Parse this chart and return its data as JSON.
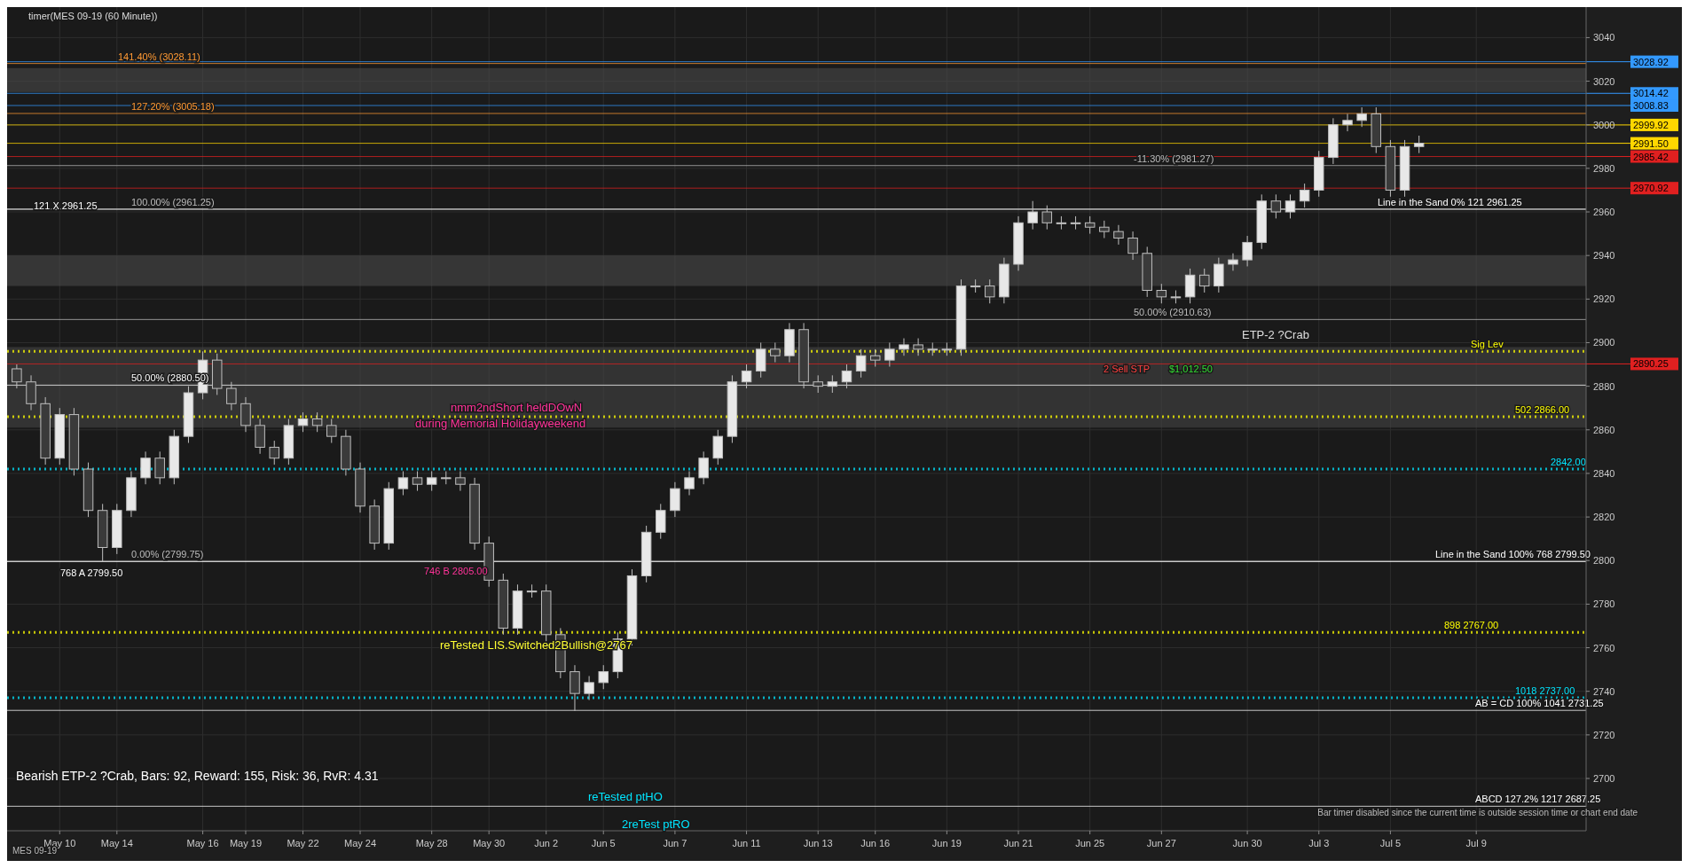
{
  "chart_data": {
    "type": "candlestick",
    "categories": [
      null,
      null,
      null,
      "May 10",
      null,
      null,
      null,
      "May 14",
      null,
      null,
      null,
      null,
      null,
      "May 16",
      null,
      null,
      "May 19",
      null,
      null,
      null,
      "May 22",
      null,
      null,
      null,
      "May 24",
      null,
      null,
      null,
      null,
      "May 28",
      null,
      null,
      null,
      "May 30",
      null,
      null,
      null,
      "Jun 2",
      null,
      null,
      null,
      "Jun 5",
      null,
      null,
      null,
      null,
      "Jun 7",
      null,
      null,
      null,
      null,
      "Jun 11",
      null,
      null,
      null,
      null,
      "Jun 13",
      null,
      null,
      null,
      "Jun 16",
      null,
      null,
      null,
      null,
      "Jun 19",
      null,
      null,
      null,
      null,
      "Jun 21",
      null,
      null,
      null,
      null,
      "Jun 25",
      null,
      null,
      null,
      null,
      "Jun 27",
      null,
      null,
      null,
      null,
      null,
      "Jun 30",
      null,
      null,
      null,
      null,
      "Jul 3",
      null,
      null,
      null,
      null,
      "Jul 5",
      null,
      null,
      null,
      null,
      null,
      "Jul 9",
      null,
      null,
      null,
      null,
      null,
      null,
      null
    ],
    "ohlc": [
      [
        2888,
        2890,
        2879,
        2882
      ],
      [
        2882,
        2885,
        2869,
        2872
      ],
      [
        2872,
        2875,
        2844,
        2847
      ],
      [
        2847,
        2870,
        2844,
        2867
      ],
      [
        2867,
        2870,
        2839,
        2842
      ],
      [
        2842,
        2845,
        2820,
        2823
      ],
      [
        2823,
        2826,
        2799.5,
        2806
      ],
      [
        2806,
        2826,
        2803,
        2823
      ],
      [
        2823,
        2841,
        2820,
        2838
      ],
      [
        2838,
        2850,
        2835,
        2847
      ],
      [
        2847,
        2850,
        2835,
        2838
      ],
      [
        2838,
        2860,
        2835,
        2857
      ],
      [
        2857,
        2880,
        2854,
        2877
      ],
      [
        2877,
        2896,
        2874,
        2892
      ],
      [
        2892,
        2895,
        2876,
        2879
      ],
      [
        2879,
        2882,
        2869,
        2872
      ],
      [
        2872,
        2875,
        2859,
        2862
      ],
      [
        2862,
        2865,
        2849,
        2852
      ],
      [
        2852,
        2855,
        2844,
        2847
      ],
      [
        2847,
        2865,
        2844,
        2862
      ],
      [
        2862,
        2868,
        2859,
        2865
      ],
      [
        2865,
        2868,
        2859,
        2862
      ],
      [
        2862,
        2865,
        2854,
        2857
      ],
      [
        2857,
        2860,
        2839,
        2842
      ],
      [
        2842,
        2845,
        2822,
        2825
      ],
      [
        2825,
        2828,
        2805,
        2808
      ],
      [
        2808,
        2836,
        2805,
        2833
      ],
      [
        2833,
        2841,
        2830,
        2838
      ],
      [
        2838,
        2841,
        2832,
        2835
      ],
      [
        2835,
        2841,
        2832,
        2838
      ],
      [
        2838,
        2841,
        2835,
        2838
      ],
      [
        2838,
        2841,
        2832,
        2835
      ],
      [
        2835,
        2838,
        2805,
        2808
      ],
      [
        2808,
        2811,
        2788,
        2791
      ],
      [
        2791,
        2794,
        2766,
        2769
      ],
      [
        2769,
        2789,
        2766,
        2786
      ],
      [
        2786,
        2789,
        2783,
        2786
      ],
      [
        2786,
        2789,
        2763,
        2766
      ],
      [
        2766,
        2769,
        2746,
        2749
      ],
      [
        2749,
        2752,
        2731,
        2739
      ],
      [
        2739,
        2747,
        2736,
        2744
      ],
      [
        2744,
        2752,
        2741,
        2749
      ],
      [
        2749,
        2767,
        2746,
        2764
      ],
      [
        2764,
        2796,
        2761,
        2793
      ],
      [
        2793,
        2816,
        2790,
        2813
      ],
      [
        2813,
        2826,
        2810,
        2823
      ],
      [
        2823,
        2836,
        2820,
        2833
      ],
      [
        2833,
        2841,
        2830,
        2838
      ],
      [
        2838,
        2850,
        2835,
        2847
      ],
      [
        2847,
        2860,
        2844,
        2857
      ],
      [
        2857,
        2885,
        2854,
        2882
      ],
      [
        2882,
        2890,
        2879,
        2887
      ],
      [
        2887,
        2900,
        2884,
        2897
      ],
      [
        2897,
        2900,
        2891,
        2894
      ],
      [
        2894,
        2909,
        2891,
        2906
      ],
      [
        2906,
        2909,
        2879,
        2882
      ],
      [
        2882,
        2885,
        2877,
        2880
      ],
      [
        2880,
        2885,
        2877,
        2882
      ],
      [
        2882,
        2890,
        2879,
        2887
      ],
      [
        2887,
        2897,
        2884,
        2894
      ],
      [
        2894,
        2897,
        2889,
        2892
      ],
      [
        2892,
        2900,
        2889,
        2897
      ],
      [
        2897,
        2902,
        2894,
        2899
      ],
      [
        2899,
        2902,
        2894,
        2897
      ],
      [
        2897,
        2900,
        2894,
        2897
      ],
      [
        2897,
        2900,
        2894,
        2897
      ],
      [
        2897,
        2929,
        2894,
        2926
      ],
      [
        2926,
        2929,
        2923,
        2926
      ],
      [
        2926,
        2929,
        2918,
        2921
      ],
      [
        2921,
        2939,
        2918,
        2936
      ],
      [
        2936,
        2958,
        2933,
        2955
      ],
      [
        2955,
        2965,
        2952,
        2960
      ],
      [
        2960,
        2963,
        2952,
        2955
      ],
      [
        2955,
        2958,
        2952,
        2955
      ],
      [
        2955,
        2958,
        2952,
        2955
      ],
      [
        2955,
        2958,
        2950,
        2953
      ],
      [
        2953,
        2956,
        2948,
        2951
      ],
      [
        2951,
        2954,
        2945,
        2948
      ],
      [
        2948,
        2951,
        2938,
        2941
      ],
      [
        2941,
        2944,
        2921,
        2924
      ],
      [
        2924,
        2927,
        2918,
        2921
      ],
      [
        2921,
        2924,
        2918,
        2921
      ],
      [
        2921,
        2934,
        2918,
        2931
      ],
      [
        2931,
        2934,
        2923,
        2926
      ],
      [
        2926,
        2939,
        2923,
        2936
      ],
      [
        2936,
        2941,
        2933,
        2938
      ],
      [
        2938,
        2949,
        2935,
        2946
      ],
      [
        2946,
        2968,
        2943,
        2965
      ],
      [
        2965,
        2968,
        2957,
        2960
      ],
      [
        2960,
        2968,
        2957,
        2965
      ],
      [
        2965,
        2973,
        2962,
        2970
      ],
      [
        2970,
        2988,
        2967,
        2985
      ],
      [
        2985,
        3003,
        2982,
        3000
      ],
      [
        3000,
        3005,
        2997,
        3002
      ],
      [
        3002,
        3008,
        2999,
        3005
      ],
      [
        3005,
        3008,
        2987,
        2990
      ],
      [
        2990,
        2993,
        2967,
        2970
      ],
      [
        2970,
        2993,
        2967,
        2990
      ],
      [
        2990,
        2995,
        2987,
        2991.5
      ],
      null,
      null,
      null,
      null,
      null,
      null,
      null,
      null,
      null,
      null,
      null
    ],
    "ylim": [
      2676,
      3054
    ],
    "yticks": [
      2700,
      2720,
      2740,
      2760,
      2780,
      2800,
      2820,
      2840,
      2860,
      2880,
      2900,
      2920,
      2940,
      2960,
      2980,
      3000,
      3020,
      3040
    ],
    "grid": true,
    "bands": [
      {
        "axis": "y",
        "from": 3015,
        "to": 3026,
        "color": "#4a4a4a"
      },
      {
        "axis": "y",
        "from": 2926,
        "to": 2940,
        "color": "#4a4a4a"
      },
      {
        "axis": "y",
        "from": 2861,
        "to": 2898,
        "color": "#444444"
      }
    ],
    "ref_lines": [
      {
        "axis": "y",
        "value": 3028.11,
        "label": "141.40% (3028.11)",
        "color": "#ff9933"
      },
      {
        "axis": "y",
        "value": 3005.18,
        "label": "127.20% (3005.18)",
        "color": "#ff9933"
      },
      {
        "axis": "y",
        "value": 2981.27,
        "label": "-11.30% (2981.27)",
        "color": "#bbbbbb"
      },
      {
        "axis": "y",
        "value": 2961.25,
        "label": "100.00% (2961.25)",
        "color": "#bbbbbb"
      },
      {
        "axis": "y",
        "value": 2910.63,
        "label": "50.00% (2910.63)",
        "color": "#bbbbbb"
      },
      {
        "axis": "y",
        "value": 2880.5,
        "label": "50.00% (2880.50)",
        "color": "#ffffff"
      },
      {
        "axis": "y",
        "value": 2799.75,
        "label": "0.00% (2799.75)",
        "color": "#bbbbbb"
      },
      {
        "axis": "y",
        "value": 2731.25,
        "label": "AB = CD   100%   1041   2731.25",
        "color": "#ffffff"
      },
      {
        "axis": "y",
        "value": 2687.25,
        "label": "ABCD   127.2%   1217   2687.25",
        "color": "#ffffff"
      },
      {
        "axis": "y",
        "value": 2896,
        "label": "Sig Lev",
        "color": "#ffff00",
        "line_style": "dotted"
      },
      {
        "axis": "y",
        "value": 2866,
        "label": "502   2866.00",
        "color": "#ffff00",
        "line_style": "dotted"
      },
      {
        "axis": "y",
        "value": 2842,
        "label": "2842.00",
        "color": "#00e5ff",
        "line_style": "dotted"
      },
      {
        "axis": "y",
        "value": 2767,
        "label": "898   2767.00",
        "color": "#ffff00",
        "line_style": "dotted"
      },
      {
        "axis": "y",
        "value": 2737,
        "label": "1018   2737.00",
        "color": "#00e5ff",
        "line_style": "dotted"
      },
      {
        "axis": "y",
        "value": 2799.5,
        "label": "Line in the Sand   100%   768   2799.50",
        "color": "#ffffff"
      },
      {
        "axis": "y",
        "value": 2961.25,
        "label": "Line in the Sand   0%   121   2961.25",
        "color": "#ffffff"
      },
      {
        "axis": "y",
        "value": 2890.25,
        "label": "2890.25",
        "color": "#e02020"
      },
      {
        "axis": "y",
        "value": 3028.92,
        "label": "3028.92",
        "color": "#3399ff"
      },
      {
        "axis": "y",
        "value": 3014.42,
        "label": "3014.42",
        "color": "#3399ff"
      },
      {
        "axis": "y",
        "value": 3008.83,
        "label": "3008.83",
        "color": "#3399ff"
      },
      {
        "axis": "y",
        "value": 2999.92,
        "label": "2999.92",
        "color": "#ffd700"
      },
      {
        "axis": "y",
        "value": 2991.5,
        "label": "2991.50",
        "color": "#ffd700"
      },
      {
        "axis": "y",
        "value": 2985.42,
        "label": "2985.42",
        "color": "#e02020"
      },
      {
        "axis": "y",
        "value": 2970.92,
        "label": "2970.92",
        "color": "#e02020"
      }
    ],
    "annotations": [
      "timer(MES 09-19 (60 Minute))",
      "Bearish ETP-2 ?Crab, Bars: 92, Reward: 155, Risk: 36, RvR: 4.31",
      "MES 09-19",
      "nmm2ndShort heldDOwN",
      "during Memorial Holidayweekend",
      "reTested LIS.Switched2Bullish@2767",
      "ETP-2 ?Crab",
      "reTested ptHO",
      "2reTest ptRO",
      "Bar timer disabled since the current time is outside session time or chart end date",
      "121  X  2961.25",
      "768  A  2799.50",
      "746  B  2805.00",
      "2 Sell STP",
      "$1,012.50"
    ]
  }
}
